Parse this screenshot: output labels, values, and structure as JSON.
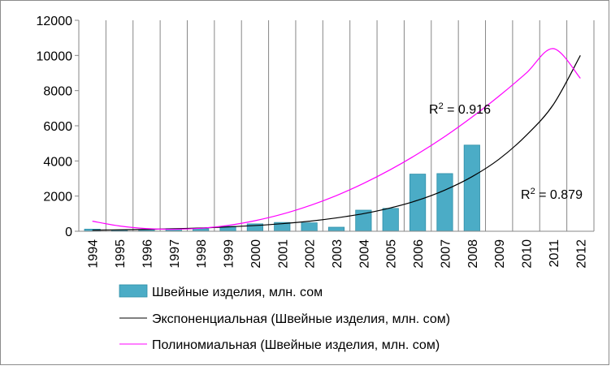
{
  "chart_data": {
    "type": "bar",
    "title": "",
    "xlabel": "",
    "ylabel": "",
    "ylim": [
      0,
      12000
    ],
    "y_ticks": [
      0,
      2000,
      4000,
      6000,
      8000,
      10000,
      12000
    ],
    "grid": "vertical",
    "legend_placement": "bottom",
    "categories": [
      "1994",
      "1995",
      "1996",
      "1997",
      "1998",
      "1999",
      "2000",
      "2001",
      "2002",
      "2003",
      "2004",
      "2005",
      "2006",
      "2007",
      "2008",
      "2009",
      "2010",
      "2011",
      "2012"
    ],
    "series": [
      {
        "name": "Швейные изделия, млн. сом",
        "type": "bar",
        "color": "#4bacc6",
        "values": [
          120,
          60,
          90,
          150,
          140,
          280,
          420,
          500,
          480,
          230,
          1200,
          1300,
          3250,
          3280,
          4900,
          null,
          null,
          null,
          null
        ]
      }
    ],
    "trendlines": [
      {
        "name": "Экспоненциальная (Швейные изделия, млн. сом)",
        "kind": "exponential",
        "color": "#000000",
        "values": [
          60,
          80,
          105,
          140,
          185,
          245,
          325,
          430,
          570,
          760,
          1000,
          1330,
          1760,
          2340,
          3100,
          4100,
          5450,
          7200,
          10000
        ],
        "r2_label": "R² = 0.879"
      },
      {
        "name": "Полиномиальная (Швейные изделия, млн. сом)",
        "kind": "polynomial",
        "color": "#ff00ff",
        "values": [
          570,
          300,
          150,
          110,
          170,
          330,
          600,
          970,
          1450,
          2030,
          2720,
          3510,
          4400,
          5390,
          6490,
          7690,
          8990,
          10390,
          8700
        ],
        "r2_label": "R² = 0.916"
      }
    ]
  }
}
